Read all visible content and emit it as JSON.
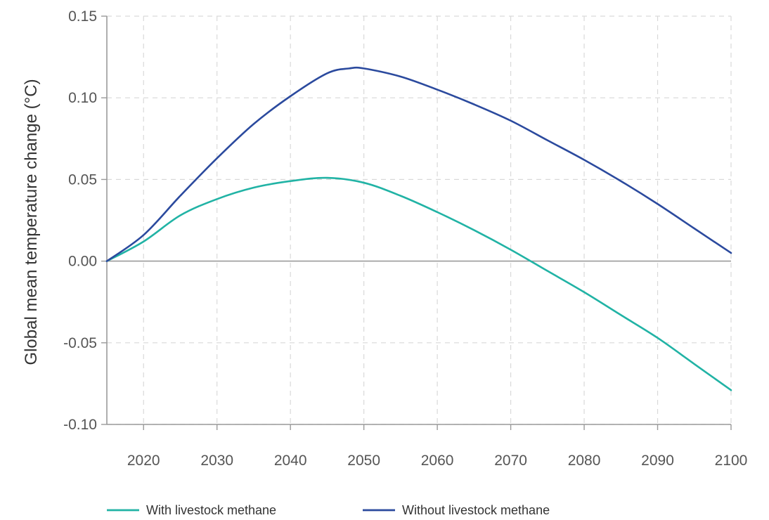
{
  "chart_data": {
    "type": "line",
    "title": "",
    "xlabel": "",
    "ylabel": "Global mean temperature change (°C)",
    "xlim": [
      2015,
      2100
    ],
    "ylim": [
      -0.1,
      0.15
    ],
    "x_ticks": [
      2020,
      2030,
      2040,
      2050,
      2060,
      2070,
      2080,
      2090,
      2100
    ],
    "y_ticks": [
      -0.1,
      -0.05,
      0.0,
      0.05,
      0.1,
      0.15
    ],
    "x_tick_labels": [
      "2020",
      "2030",
      "2040",
      "2050",
      "2060",
      "2070",
      "2080",
      "2090",
      "2100"
    ],
    "y_tick_labels": [
      "-0.10",
      "-0.05",
      "0.00",
      "0.05",
      "0.10",
      "0.15"
    ],
    "grid": true,
    "legend_position": "bottom",
    "series": [
      {
        "name": "With livestock methane",
        "color": "#21b3a5",
        "x": [
          2015,
          2020,
          2025,
          2030,
          2035,
          2040,
          2045,
          2050,
          2055,
          2060,
          2065,
          2070,
          2075,
          2080,
          2085,
          2090,
          2095,
          2100
        ],
        "y": [
          0.0,
          0.012,
          0.028,
          0.038,
          0.045,
          0.049,
          0.051,
          0.048,
          0.04,
          0.03,
          0.019,
          0.007,
          -0.006,
          -0.019,
          -0.033,
          -0.047,
          -0.063,
          -0.079
        ]
      },
      {
        "name": "Without livestock methane",
        "color": "#2b4a9e",
        "x": [
          2015,
          2020,
          2025,
          2030,
          2035,
          2040,
          2045,
          2048,
          2050,
          2055,
          2060,
          2065,
          2070,
          2075,
          2080,
          2085,
          2090,
          2095,
          2100
        ],
        "y": [
          0.0,
          0.016,
          0.04,
          0.063,
          0.084,
          0.101,
          0.115,
          0.118,
          0.118,
          0.113,
          0.105,
          0.096,
          0.086,
          0.074,
          0.062,
          0.049,
          0.035,
          0.02,
          0.005
        ]
      }
    ]
  }
}
